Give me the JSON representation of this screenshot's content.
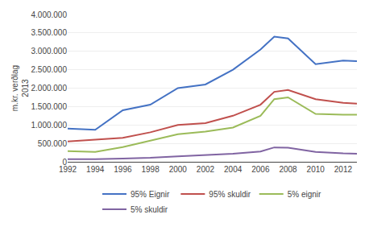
{
  "chart_data": {
    "type": "line",
    "ylabel": "m.kr. verðlag\n2013",
    "x": [
      1992,
      1994,
      1996,
      1998,
      2000,
      2002,
      2004,
      2006,
      2007,
      2008,
      2010,
      2012,
      2013
    ],
    "series": [
      {
        "name": "95% Eignir",
        "color": "#4472C4",
        "values": [
          900000,
          870000,
          1400000,
          1550000,
          2000000,
          2100000,
          2500000,
          3050000,
          3400000,
          3350000,
          2650000,
          2750000,
          2730000
        ]
      },
      {
        "name": "95% skuldir",
        "color": "#C0504D",
        "values": [
          550000,
          600000,
          650000,
          800000,
          1000000,
          1050000,
          1250000,
          1550000,
          1900000,
          1950000,
          1700000,
          1600000,
          1580000
        ]
      },
      {
        "name": "5% eignir",
        "color": "#9BBB59",
        "values": [
          290000,
          270000,
          400000,
          570000,
          750000,
          820000,
          930000,
          1250000,
          1700000,
          1750000,
          1300000,
          1280000,
          1280000
        ]
      },
      {
        "name": "5% skuldir",
        "color": "#8064A2",
        "values": [
          70000,
          70000,
          90000,
          110000,
          150000,
          180000,
          220000,
          280000,
          390000,
          380000,
          270000,
          230000,
          220000
        ]
      }
    ],
    "xlim": [
      1992,
      2013
    ],
    "xticks": [
      1992,
      1994,
      1996,
      1998,
      2000,
      2002,
      2004,
      2006,
      2008,
      2010,
      2012
    ],
    "ylim": [
      0,
      4000000
    ],
    "yticks": [
      0,
      {
        "value": 500000,
        "label": "500.000"
      },
      {
        "value": 1000000,
        "label": "1.000.000"
      },
      {
        "value": 1500000,
        "label": "1.500.000"
      },
      {
        "value": 2000000,
        "label": "2.000.000"
      },
      {
        "value": 2500000,
        "label": "2.500.000"
      },
      {
        "value": 3000000,
        "label": "3.000.000"
      },
      {
        "value": 3500000,
        "label": "3.500.000"
      },
      {
        "value": 4000000,
        "label": "4.000.000"
      }
    ],
    "grid": "y",
    "legend": "bottom"
  }
}
